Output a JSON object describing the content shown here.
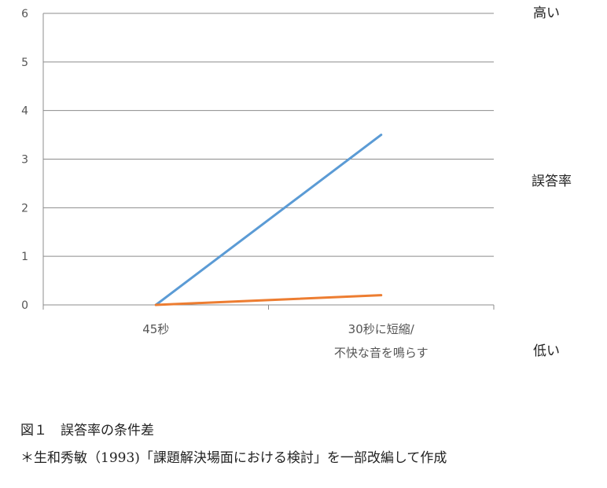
{
  "chart_data": {
    "type": "line",
    "categories": [
      "45秒",
      "30秒に短縮/\n不快な音を鳴らす"
    ],
    "series": [
      {
        "values": [
          0,
          3.5
        ],
        "color": "#5b9bd5"
      },
      {
        "values": [
          0,
          0.2
        ],
        "color": "#ed7d31"
      }
    ],
    "ylim": [
      0,
      6
    ],
    "yticks": [
      0,
      1,
      2,
      3,
      4,
      5,
      6
    ],
    "grid": true,
    "ylabel_right": {
      "top": "高い",
      "middle": "誤答率",
      "bottom": "低い"
    }
  },
  "caption": {
    "title": "図１　誤答率の条件差",
    "source": "＊生和秀敏（1993)「課題解決場面における検討」を一部改編して作成"
  }
}
